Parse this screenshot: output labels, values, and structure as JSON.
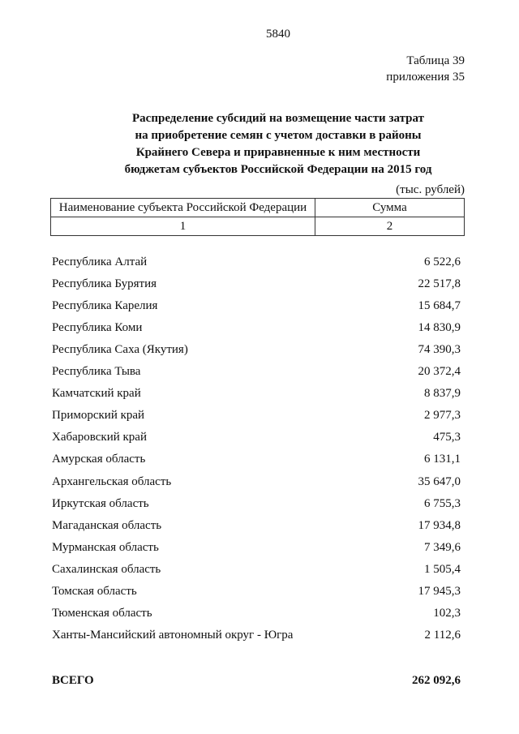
{
  "page_number": "5840",
  "table_label": "Таблица 39",
  "appendix_label": "приложения 35",
  "title_lines": [
    "Распределение субсидий на возмещение части затрат",
    "на приобретение семян с учетом доставки в районы",
    "Крайнего Севера и приравненные к ним местности",
    "бюджетам субъектов Российской Федерации на 2015 год"
  ],
  "units": "(тыс. рублей)",
  "columns": [
    "Наименование субъекта Российской Федерации",
    "Сумма"
  ],
  "column_numbers": [
    "1",
    "2"
  ],
  "rows": [
    {
      "name": "Республика Алтай",
      "value": "6 522,6"
    },
    {
      "name": "Республика Бурятия",
      "value": "22 517,8"
    },
    {
      "name": "Республика Карелия",
      "value": "15 684,7"
    },
    {
      "name": "Республика Коми",
      "value": "14 830,9"
    },
    {
      "name": "Республика Саха (Якутия)",
      "value": "74 390,3"
    },
    {
      "name": "Республика Тыва",
      "value": "20 372,4"
    },
    {
      "name": "Камчатский край",
      "value": "8 837,9"
    },
    {
      "name": "Приморский край",
      "value": "2 977,3"
    },
    {
      "name": "Хабаровский край",
      "value": "475,3"
    },
    {
      "name": "Амурская область",
      "value": "6 131,1"
    },
    {
      "name": "Архангельская область",
      "value": "35 647,0"
    },
    {
      "name": "Иркутская область",
      "value": "6 755,3"
    },
    {
      "name": "Магаданская область",
      "value": "17 934,8"
    },
    {
      "name": "Мурманская область",
      "value": "7 349,6"
    },
    {
      "name": "Сахалинская область",
      "value": "1 505,4"
    },
    {
      "name": "Томская область",
      "value": "17 945,3"
    },
    {
      "name": "Тюменская область",
      "value": "102,3"
    },
    {
      "name": "Ханты-Мансийский автономный округ - Югра",
      "value": "2 112,6"
    }
  ],
  "total": {
    "label": "ВСЕГО",
    "value": "262 092,6"
  }
}
